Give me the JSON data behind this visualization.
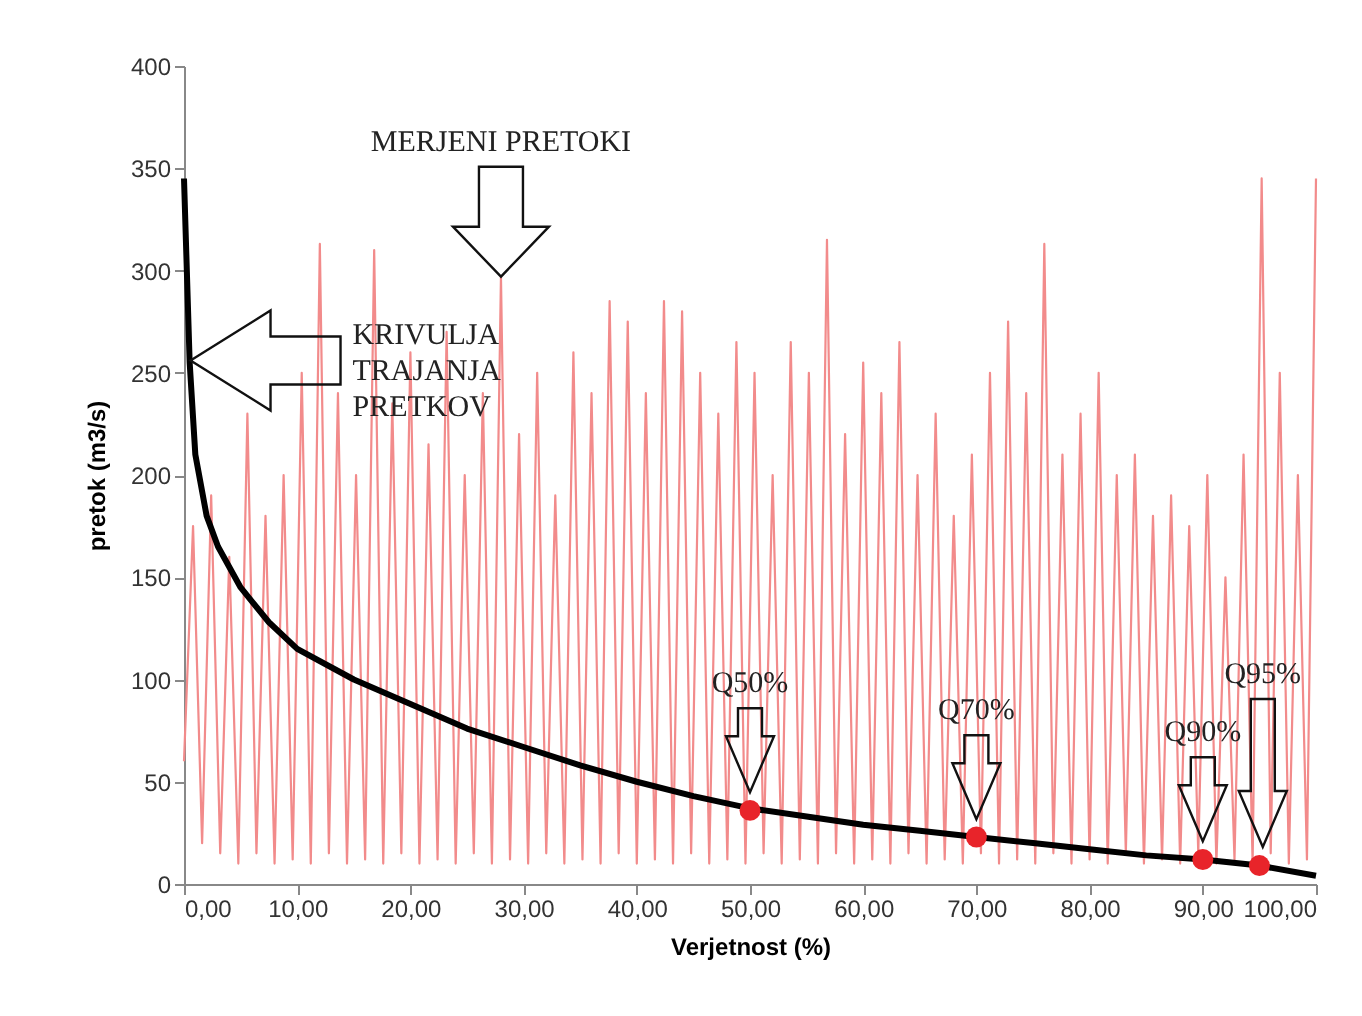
{
  "chart_data": {
    "type": "line",
    "xlabel": "Verjetnost (%)",
    "ylabel": "pretok (m3/s)",
    "xlim": [
      0,
      100
    ],
    "xticks": [
      {
        "value": 0,
        "label": "0,00"
      },
      {
        "value": 10,
        "label": "10,00"
      },
      {
        "value": 20,
        "label": "20,00"
      },
      {
        "value": 30,
        "label": "30,00"
      },
      {
        "value": 40,
        "label": "40,00"
      },
      {
        "value": 50,
        "label": "50,00"
      },
      {
        "value": 60,
        "label": "60,00"
      },
      {
        "value": 70,
        "label": "70,00"
      },
      {
        "value": 80,
        "label": "80,00"
      },
      {
        "value": 90,
        "label": "90,00"
      },
      {
        "value": 100,
        "label": "100,00"
      }
    ],
    "ylim": [
      0,
      400
    ],
    "yticks": [
      0,
      50,
      100,
      150,
      200,
      250,
      300,
      350,
      400
    ],
    "grid": false,
    "series": [
      {
        "color": "#f28b8b",
        "x": [
          0,
          0.8,
          1.6,
          2.4,
          3.2,
          4,
          4.8,
          5.6,
          6.4,
          7.2,
          8,
          8.8,
          9.6,
          10.4,
          11.2,
          12,
          12.8,
          13.6,
          14.4,
          15.2,
          16,
          16.8,
          17.6,
          18.4,
          19.2,
          20,
          20.8,
          21.6,
          22.4,
          23.2,
          24,
          24.8,
          25.6,
          26.4,
          27.2,
          28,
          28.8,
          29.6,
          30.4,
          31.2,
          32,
          32.8,
          33.6,
          34.4,
          35.2,
          36,
          36.8,
          37.6,
          38.4,
          39.2,
          40,
          40.8,
          41.6,
          42.4,
          43.2,
          44,
          44.8,
          45.6,
          46.4,
          47.2,
          48,
          48.8,
          49.6,
          50.4,
          51.2,
          52,
          52.8,
          53.6,
          54.4,
          55.2,
          56,
          56.8,
          57.6,
          58.4,
          59.2,
          60,
          60.8,
          61.6,
          62.4,
          63.2,
          64,
          64.8,
          65.6,
          66.4,
          67.2,
          68,
          68.8,
          69.6,
          70.4,
          71.2,
          72,
          72.8,
          73.6,
          74.4,
          75.2,
          76,
          76.8,
          77.6,
          78.4,
          79.2,
          80,
          80.8,
          81.6,
          82.4,
          83.2,
          84,
          84.8,
          85.6,
          86.4,
          87.2,
          88,
          88.8,
          89.6,
          90.4,
          91.2,
          92,
          92.8,
          93.6,
          94.4,
          95.2,
          96,
          96.8,
          97.6,
          98.4,
          99.2,
          100
        ],
        "values": [
          60,
          175,
          20,
          190,
          15,
          160,
          10,
          230,
          15,
          180,
          10,
          200,
          12,
          250,
          10,
          313,
          15,
          240,
          10,
          200,
          12,
          310,
          10,
          235,
          15,
          260,
          10,
          215,
          12,
          270,
          10,
          200,
          15,
          240,
          10,
          297,
          12,
          220,
          10,
          250,
          15,
          190,
          10,
          260,
          12,
          240,
          10,
          285,
          15,
          275,
          10,
          240,
          12,
          285,
          10,
          280,
          15,
          250,
          10,
          230,
          12,
          265,
          10,
          250,
          15,
          200,
          10,
          265,
          12,
          250,
          10,
          315,
          15,
          220,
          10,
          255,
          12,
          240,
          10,
          265,
          15,
          200,
          10,
          230,
          12,
          180,
          10,
          210,
          15,
          250,
          10,
          275,
          12,
          240,
          10,
          313,
          15,
          210,
          10,
          230,
          12,
          250,
          10,
          200,
          15,
          210,
          10,
          180,
          12,
          190,
          10,
          175,
          15,
          200,
          10,
          150,
          12,
          210,
          10,
          345,
          15,
          250,
          10,
          200,
          12,
          345
        ]
      },
      {
        "color": "#000000",
        "x": [
          0,
          0.5,
          1,
          2,
          3,
          5,
          7.5,
          10,
          15,
          20,
          25,
          30,
          35,
          40,
          45,
          50,
          55,
          60,
          65,
          70,
          75,
          80,
          85,
          90,
          95,
          100
        ],
        "values": [
          345,
          255,
          210,
          180,
          165,
          145,
          128,
          115,
          100,
          88,
          76,
          67,
          58,
          50,
          43,
          37,
          33,
          29,
          26,
          23,
          20,
          17,
          14,
          12,
          9,
          4
        ]
      },
      {
        "type": "scatter",
        "color": "#e8242a",
        "marker": "circle",
        "x": [
          50,
          70,
          90,
          95
        ],
        "values": [
          36,
          23,
          12,
          9
        ]
      }
    ],
    "annotations": [
      "MERJENI PRETOKI",
      "KRIVULJA TRAJANJA PRETKOV",
      "Q50%",
      "Q70%",
      "Q90%",
      "Q95%"
    ]
  }
}
